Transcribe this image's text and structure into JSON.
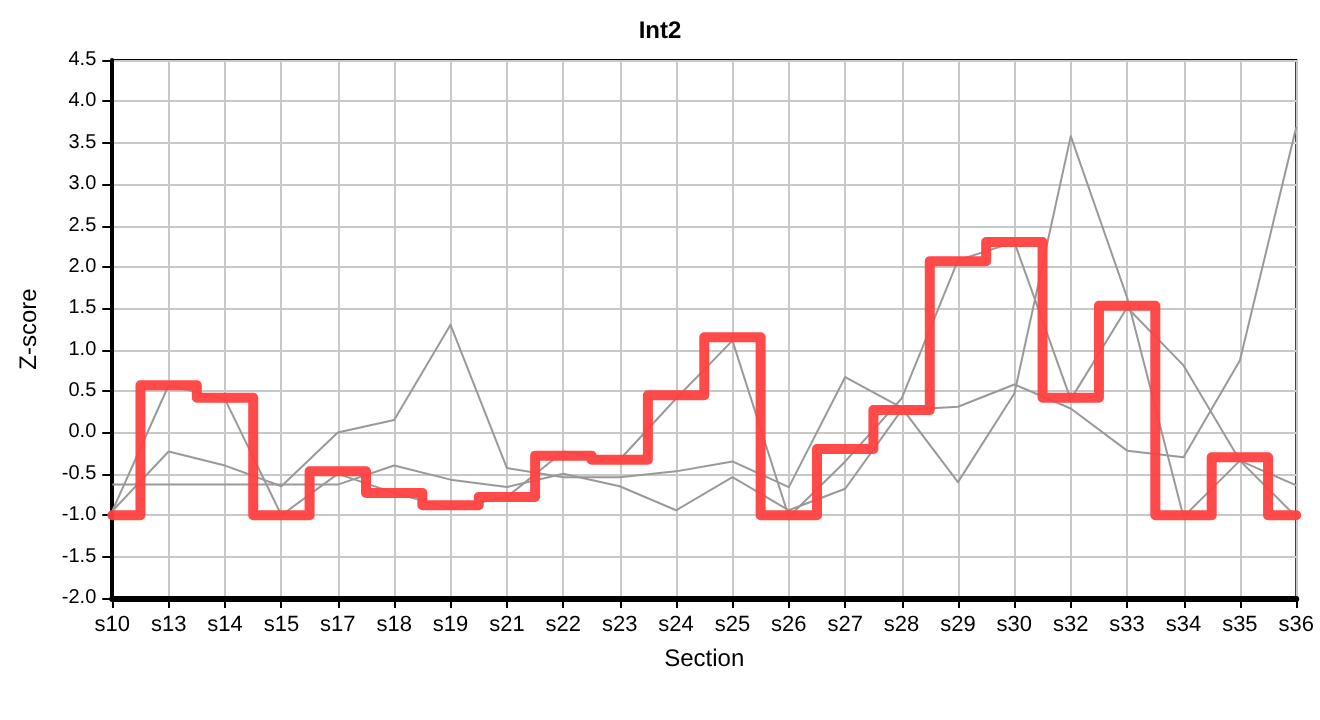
{
  "chart_data": {
    "type": "line",
    "title": "Int2",
    "xlabel": "Section",
    "ylabel": "Z-score",
    "categories": [
      "s10",
      "s13",
      "s14",
      "s15",
      "s17",
      "s18",
      "s19",
      "s21",
      "s22",
      "s23",
      "s24",
      "s25",
      "s26",
      "s27",
      "s28",
      "s29",
      "s30",
      "s32",
      "s33",
      "s34",
      "s35",
      "s36"
    ],
    "series": [
      {
        "color": "#999999",
        "values": [
          -0.95,
          0.57,
          0.4,
          -1.0,
          -0.5,
          -0.73,
          -0.92,
          -0.78,
          -0.23,
          -0.33,
          0.41,
          1.11,
          -1.02,
          -0.35,
          0.41,
          2.08,
          2.3,
          0.4,
          1.51,
          0.81,
          -0.34,
          -0.64
        ]
      },
      {
        "color": "#999999",
        "values": [
          -0.95,
          -0.23,
          -0.4,
          -0.65,
          0.0,
          0.15,
          1.3,
          -0.43,
          -0.54,
          -0.54,
          -0.47,
          -0.35,
          -0.66,
          0.67,
          0.3,
          -0.6,
          0.47,
          3.58,
          1.63,
          -1.02,
          -0.34,
          -1.02
        ]
      },
      {
        "color": "#999999",
        "values": [
          -0.63,
          -0.63,
          -0.63,
          -0.63,
          -0.63,
          -0.4,
          -0.57,
          -0.66,
          -0.5,
          -0.65,
          -0.94,
          -0.54,
          -0.94,
          -0.68,
          0.27,
          0.31,
          0.58,
          0.29,
          -0.22,
          -0.3,
          0.87,
          3.69
        ]
      },
      {
        "type": "step",
        "color": "#ff4040",
        "values": [
          -1.0,
          0.57,
          0.42,
          -1.0,
          -0.47,
          -0.73,
          -0.88,
          -0.78,
          -0.28,
          -0.33,
          0.45,
          1.15,
          -1.0,
          -0.2,
          0.27,
          2.07,
          2.3,
          0.42,
          1.53,
          -1.0,
          -0.3,
          -1.0
        ]
      }
    ],
    "ylim": [
      -2.0,
      4.5
    ],
    "yticks": [
      {
        "value": -2,
        "label": "-2.0"
      },
      {
        "value": -1.5,
        "label": "-1.5"
      },
      {
        "value": -1,
        "label": "-1.0"
      },
      {
        "value": -0.5,
        "label": "-0.5"
      },
      {
        "value": 0,
        "label": "0.0"
      },
      {
        "value": 0.5,
        "label": "0.5"
      },
      {
        "value": 1,
        "label": "1.0"
      },
      {
        "value": 1.5,
        "label": "1.5"
      },
      {
        "value": 2,
        "label": "2.0"
      },
      {
        "value": 2.5,
        "label": "2.5"
      },
      {
        "value": 3,
        "label": "3.0"
      },
      {
        "value": 3.5,
        "label": "3.5"
      },
      {
        "value": 4,
        "label": "4.0"
      },
      {
        "value": 4.5,
        "label": "4.5"
      }
    ],
    "grid": true,
    "marker": "none"
  }
}
